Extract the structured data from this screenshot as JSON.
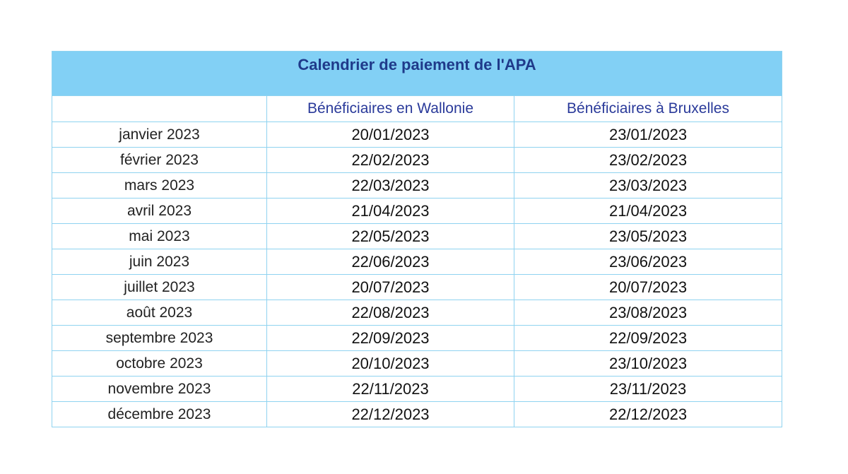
{
  "table": {
    "title": "Calendrier de paiement de l'APA",
    "headers": [
      "",
      "Bénéficiaires en Wallonie",
      "Bénéficiaires à Bruxelles"
    ],
    "rows": [
      {
        "month": "janvier 2023",
        "wallonie": "20/01/2023",
        "bruxelles": "23/01/2023"
      },
      {
        "month": "février 2023",
        "wallonie": "22/02/2023",
        "bruxelles": "23/02/2023"
      },
      {
        "month": "mars 2023",
        "wallonie": "22/03/2023",
        "bruxelles": "23/03/2023"
      },
      {
        "month": "avril 2023",
        "wallonie": "21/04/2023",
        "bruxelles": "21/04/2023"
      },
      {
        "month": "mai 2023",
        "wallonie": "22/05/2023",
        "bruxelles": "23/05/2023"
      },
      {
        "month": "juin 2023",
        "wallonie": "22/06/2023",
        "bruxelles": "23/06/2023"
      },
      {
        "month": "juillet 2023",
        "wallonie": "20/07/2023",
        "bruxelles": "20/07/2023"
      },
      {
        "month": "août 2023",
        "wallonie": "22/08/2023",
        "bruxelles": "23/08/2023"
      },
      {
        "month": "septembre 2023",
        "wallonie": "22/09/2023",
        "bruxelles": "22/09/2023"
      },
      {
        "month": "octobre 2023",
        "wallonie": "20/10/2023",
        "bruxelles": "23/10/2023"
      },
      {
        "month": "novembre 2023",
        "wallonie": "22/11/2023",
        "bruxelles": "23/11/2023"
      },
      {
        "month": "décembre 2023",
        "wallonie": "22/12/2023",
        "bruxelles": "22/12/2023"
      }
    ]
  },
  "colors": {
    "title_background": "#82d0f5",
    "border": "#8fd3f0",
    "title_text": "#1f3a8a",
    "header_text": "#2a3a9a"
  }
}
